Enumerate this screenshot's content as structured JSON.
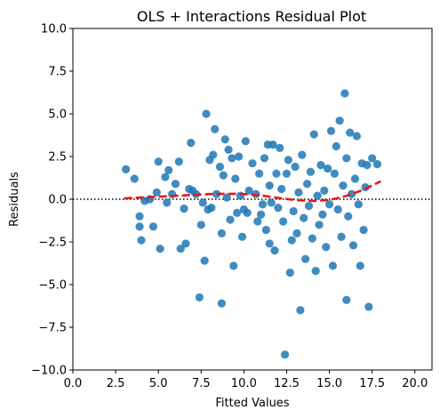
{
  "chart_data": {
    "type": "scatter",
    "title": "OLS + Interactions Residual Plot",
    "xlabel": "Fitted Values",
    "ylabel": "Residuals",
    "xlim": [
      0,
      21
    ],
    "ylim": [
      -10,
      10
    ],
    "xticks": [
      "0.0",
      "2.5",
      "5.0",
      "7.5",
      "10.0",
      "12.5",
      "15.0",
      "17.5",
      "20.0"
    ],
    "yticks": [
      "10.0",
      "7.5",
      "5.0",
      "2.5",
      "0.0",
      "−2.5",
      "−5.0",
      "−7.5",
      "−10.0"
    ],
    "xtick_values": [
      0,
      2.5,
      5,
      7.5,
      10,
      12.5,
      15,
      17.5,
      20
    ],
    "ytick_values": [
      10,
      7.5,
      5,
      2.5,
      0,
      -2.5,
      -5,
      -7.5,
      -10
    ],
    "grid": false,
    "point_color": "#1f77b4",
    "reference_line": {
      "y": 0,
      "style": "dotted",
      "color": "#000000"
    },
    "trend_line": {
      "style": "dashed",
      "color": "#e41a1c",
      "x": [
        3,
        4,
        5,
        6,
        7,
        8,
        9,
        10,
        11,
        12,
        13,
        14,
        15,
        16,
        17,
        18
      ],
      "y": [
        0.05,
        0.1,
        0.15,
        0.2,
        0.25,
        0.3,
        0.32,
        0.3,
        0.22,
        0.08,
        -0.05,
        -0.1,
        -0.05,
        0.2,
        0.55,
        1.05
      ]
    },
    "points": [
      [
        3.1,
        1.75
      ],
      [
        3.6,
        1.2
      ],
      [
        3.9,
        -1.0
      ],
      [
        3.9,
        -1.6
      ],
      [
        4.0,
        -2.4
      ],
      [
        4.2,
        -0.1
      ],
      [
        4.5,
        0.0
      ],
      [
        4.7,
        -1.6
      ],
      [
        4.9,
        0.4
      ],
      [
        5.0,
        2.2
      ],
      [
        5.1,
        -2.9
      ],
      [
        5.4,
        1.3
      ],
      [
        5.5,
        -0.2
      ],
      [
        5.6,
        1.7
      ],
      [
        5.8,
        0.3
      ],
      [
        6.0,
        0.9
      ],
      [
        6.2,
        2.2
      ],
      [
        6.3,
        -2.9
      ],
      [
        6.5,
        -0.55
      ],
      [
        6.6,
        -2.6
      ],
      [
        6.8,
        0.6
      ],
      [
        6.9,
        3.3
      ],
      [
        7.0,
        0.5
      ],
      [
        7.2,
        0.3
      ],
      [
        7.4,
        -5.75
      ],
      [
        7.5,
        -1.5
      ],
      [
        7.6,
        -0.2
      ],
      [
        7.7,
        -3.6
      ],
      [
        7.8,
        5.0
      ],
      [
        7.9,
        -0.6
      ],
      [
        8.0,
        2.3
      ],
      [
        8.1,
        -0.5
      ],
      [
        8.2,
        2.6
      ],
      [
        8.3,
        4.1
      ],
      [
        8.4,
        0.3
      ],
      [
        8.6,
        1.9
      ],
      [
        8.7,
        -6.1
      ],
      [
        8.7,
        -2.0
      ],
      [
        8.8,
        1.4
      ],
      [
        8.9,
        3.5
      ],
      [
        9.0,
        0.1
      ],
      [
        9.1,
        2.9
      ],
      [
        9.2,
        -1.2
      ],
      [
        9.3,
        2.4
      ],
      [
        9.4,
        -3.9
      ],
      [
        9.5,
        1.2
      ],
      [
        9.6,
        -0.8
      ],
      [
        9.7,
        2.5
      ],
      [
        9.8,
        0.2
      ],
      [
        9.9,
        -2.2
      ],
      [
        10.0,
        -0.6
      ],
      [
        10.1,
        3.4
      ],
      [
        10.2,
        -0.8
      ],
      [
        10.3,
        0.5
      ],
      [
        10.5,
        2.1
      ],
      [
        10.7,
        0.3
      ],
      [
        10.8,
        -1.3
      ],
      [
        10.9,
        1.5
      ],
      [
        11.0,
        -0.9
      ],
      [
        11.1,
        -0.3
      ],
      [
        11.2,
        2.4
      ],
      [
        11.3,
        -1.8
      ],
      [
        11.4,
        3.2
      ],
      [
        11.5,
        0.8
      ],
      [
        11.5,
        -2.6
      ],
      [
        11.6,
        -0.2
      ],
      [
        11.7,
        3.2
      ],
      [
        11.8,
        -3.0
      ],
      [
        11.9,
        1.5
      ],
      [
        12.0,
        -0.5
      ],
      [
        12.1,
        3.0
      ],
      [
        12.2,
        0.6
      ],
      [
        12.3,
        -1.3
      ],
      [
        12.4,
        -9.1
      ],
      [
        12.5,
        1.5
      ],
      [
        12.6,
        2.3
      ],
      [
        12.7,
        -4.3
      ],
      [
        12.8,
        -2.4
      ],
      [
        12.9,
        -0.7
      ],
      [
        13.0,
        1.9
      ],
      [
        13.1,
        -2.0
      ],
      [
        13.2,
        0.4
      ],
      [
        13.3,
        -6.5
      ],
      [
        13.4,
        2.6
      ],
      [
        13.5,
        -1.1
      ],
      [
        13.6,
        -3.5
      ],
      [
        13.7,
        0.9
      ],
      [
        13.8,
        -0.4
      ],
      [
        13.9,
        1.6
      ],
      [
        14.0,
        -2.3
      ],
      [
        14.1,
        3.8
      ],
      [
        14.2,
        -4.2
      ],
      [
        14.3,
        0.2
      ],
      [
        14.4,
        -1.5
      ],
      [
        14.5,
        2.0
      ],
      [
        14.6,
        -0.9
      ],
      [
        14.7,
        0.5
      ],
      [
        14.8,
        -2.8
      ],
      [
        14.9,
        1.8
      ],
      [
        15.0,
        -0.3
      ],
      [
        15.1,
        4.0
      ],
      [
        15.2,
        -3.9
      ],
      [
        15.3,
        1.5
      ],
      [
        15.4,
        3.1
      ],
      [
        15.5,
        -0.6
      ],
      [
        15.6,
        4.6
      ],
      [
        15.7,
        -2.2
      ],
      [
        15.8,
        0.8
      ],
      [
        15.9,
        6.2
      ],
      [
        16.0,
        -5.9
      ],
      [
        16.0,
        2.4
      ],
      [
        16.1,
        -1.0
      ],
      [
        16.2,
        3.9
      ],
      [
        16.3,
        0.3
      ],
      [
        16.4,
        -2.7
      ],
      [
        16.5,
        1.2
      ],
      [
        16.6,
        3.7
      ],
      [
        16.7,
        -0.3
      ],
      [
        16.8,
        -3.9
      ],
      [
        16.9,
        2.1
      ],
      [
        17.0,
        -1.8
      ],
      [
        17.1,
        0.7
      ],
      [
        17.2,
        2.0
      ],
      [
        17.3,
        -6.3
      ],
      [
        17.5,
        2.4
      ],
      [
        17.8,
        2.05
      ]
    ]
  }
}
